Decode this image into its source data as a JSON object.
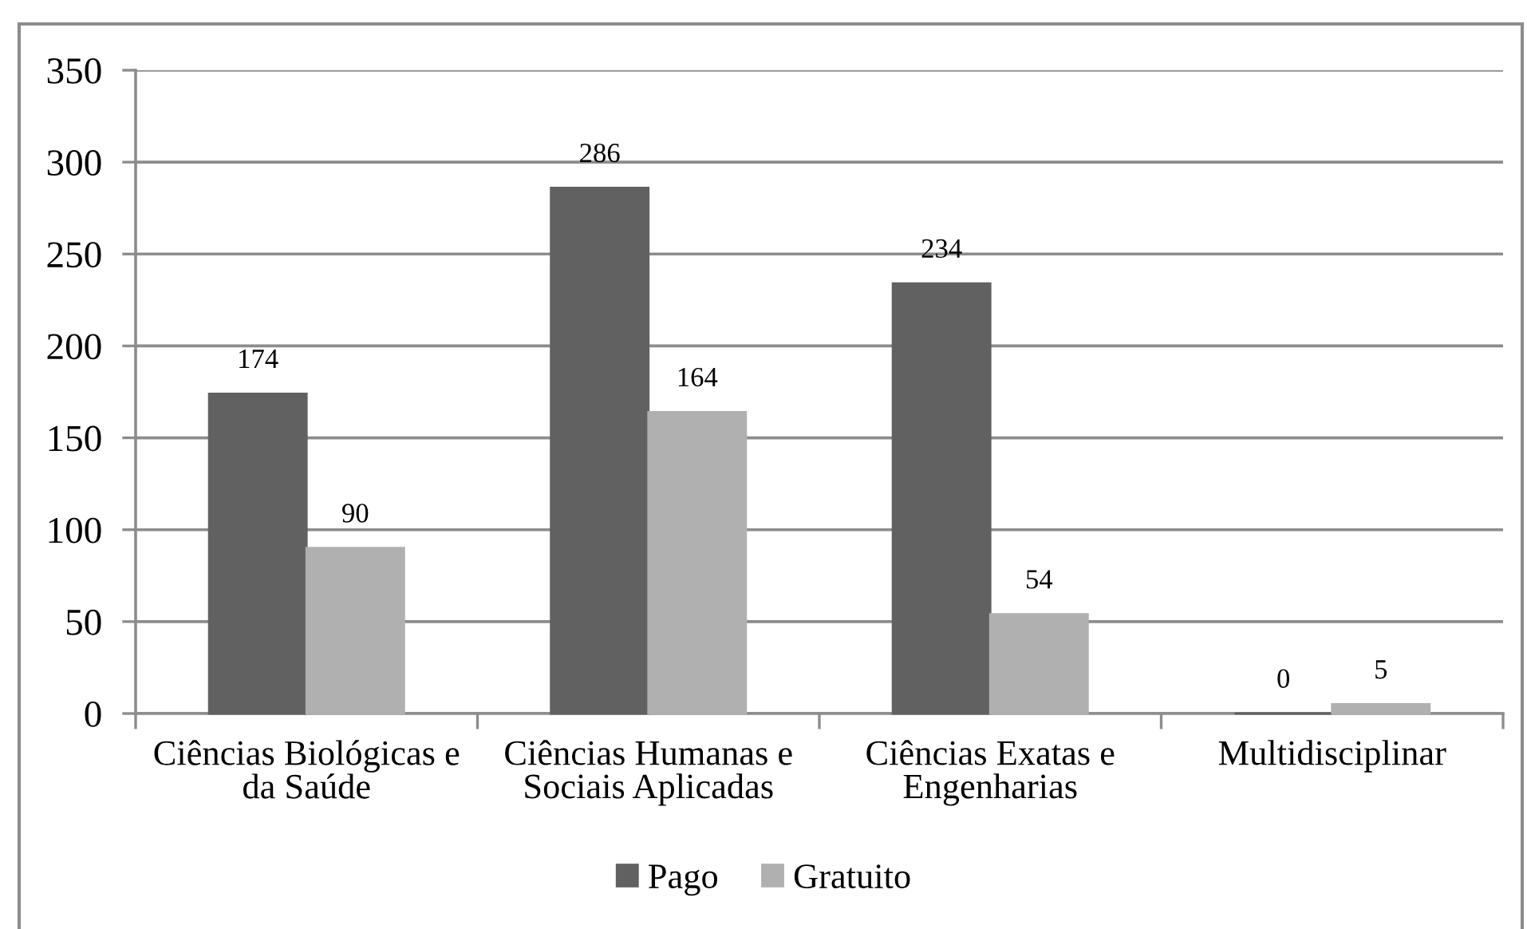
{
  "chart_data": {
    "type": "bar",
    "categories": [
      "Ciências Biológicas e da Saúde",
      "Ciências Humanas e Sociais Aplicadas",
      "Ciências Exatas e Engenharias",
      "Multidisciplinar"
    ],
    "series": [
      {
        "name": "Pago",
        "color": "#616161",
        "values": [
          174,
          286,
          234,
          0
        ]
      },
      {
        "name": "Gratuito",
        "color": "#b0b0b0",
        "values": [
          90,
          164,
          54,
          5
        ]
      }
    ],
    "ylim": [
      0,
      350
    ],
    "yticks": [
      0,
      50,
      100,
      150,
      200,
      250,
      300,
      350
    ],
    "grid": "y",
    "legend": "bottom",
    "data_labels": true
  }
}
